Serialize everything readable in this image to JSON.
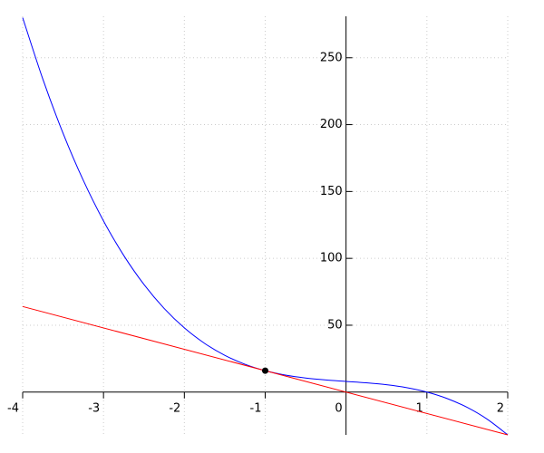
{
  "chart_data": {
    "type": "line",
    "xlim": [
      -4,
      2
    ],
    "ylim": [
      -32,
      281
    ],
    "xticks": [
      -4,
      -3,
      -2,
      -1,
      0,
      1,
      2
    ],
    "yticks": [
      50,
      100,
      150,
      200,
      250
    ],
    "grid": true,
    "series": [
      {
        "color": "#0000ff",
        "smooth": true,
        "x": [
          -4,
          -3.75,
          -3.5,
          -3.25,
          -3,
          -2.75,
          -2.5,
          -2.25,
          -2,
          -1.75,
          -1.5,
          -1.25,
          -1,
          -0.75,
          -0.5,
          -0.25,
          0,
          0.25,
          0.5,
          0.75,
          1,
          1.25,
          1.5,
          1.75,
          2
        ],
        "values": [
          280,
          233.94,
          193.5,
          158.31,
          128,
          102.19,
          80.5,
          62.56,
          48,
          36.44,
          27.5,
          20.81,
          16,
          12.69,
          10.5,
          9.06,
          8,
          6.94,
          5.5,
          3.31,
          0,
          -4.81,
          -11.5,
          -20.44,
          -32
        ]
      },
      {
        "color": "#ff0000",
        "x": [
          -4,
          2
        ],
        "values": [
          64,
          -32
        ]
      }
    ],
    "points": [
      {
        "x": -1,
        "y": 16,
        "color": "#000000"
      }
    ]
  }
}
